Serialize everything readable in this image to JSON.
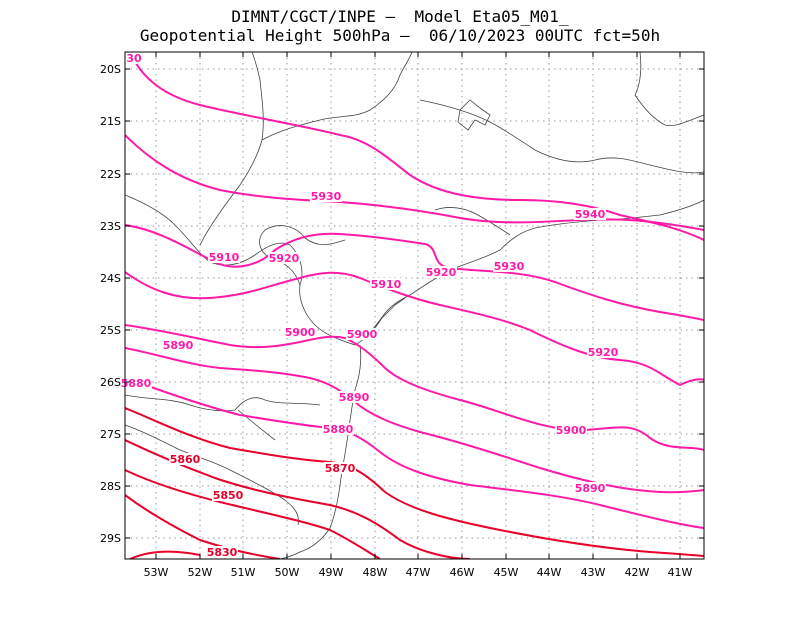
{
  "header": {
    "line1": "DIMNT/CGCT/INPE –  Model Eta05_M01_",
    "line2": "Geopotential Height 500hPa –  06/10/2023 00UTC fct=50h"
  },
  "axes": {
    "lat_ticks": [
      "20S",
      "21S",
      "22S",
      "23S",
      "24S",
      "25S",
      "26S",
      "27S",
      "28S",
      "29S"
    ],
    "lon_ticks": [
      "53W",
      "52W",
      "51W",
      "50W",
      "49W",
      "48W",
      "47W",
      "46W",
      "45W",
      "44W",
      "43W",
      "42W",
      "41W"
    ]
  },
  "colors": {
    "contour_high": "#ff1aa8",
    "contour_low": "#e8002a",
    "coast": "#444444",
    "grid": "#9a9a9a"
  },
  "contour_labels": [
    "5830",
    "5850",
    "5860",
    "5870",
    "5880",
    "5880",
    "5890",
    "5890",
    "5890",
    "5900",
    "5900",
    "5900",
    "5910",
    "5910",
    "5920",
    "5920",
    "5920",
    "5930",
    "5930",
    "5940",
    "30"
  ]
}
